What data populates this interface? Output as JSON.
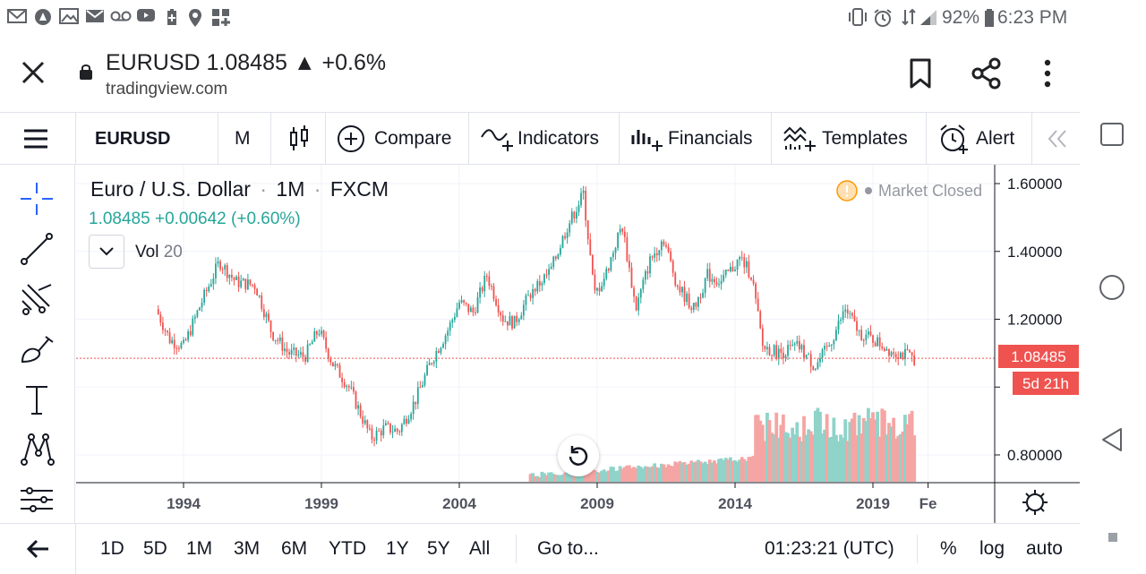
{
  "status_bar": {
    "left_icons": [
      "gmail-icon",
      "maps-feed-icon",
      "photos-icon",
      "mail-icon",
      "voicemail-icon",
      "youtube-icon",
      "battery-saver-icon",
      "location-icon",
      "apps-grid-icon"
    ],
    "right_icons": [
      "vibrate-icon",
      "alarm-icon",
      "data-signal-icon",
      "cell-signal-icon"
    ],
    "battery": "92%",
    "time": "6:23 PM"
  },
  "browser": {
    "page_title": "EURUSD 1.08485 ▲ +0.6%",
    "url": "tradingview.com"
  },
  "toolbar": {
    "symbol": "EURUSD",
    "interval": "M",
    "compare": "Compare",
    "indicators": "Indicators",
    "financials": "Financials",
    "templates": "Templates",
    "alert": "Alert"
  },
  "left_tools": [
    "crosshair-icon",
    "trend-line-icon",
    "pitchfork-icon",
    "brush-icon",
    "text-icon",
    "pattern-icon",
    "measure-icon",
    "back-arrow-icon"
  ],
  "legend": {
    "symbol_name": "Euro / U.S. Dollar",
    "interval": "1M",
    "exchange": "FXCM",
    "price": "1.08485",
    "change": "+0.00642",
    "change_pct": "(+0.60%)",
    "vol_label": "Vol",
    "vol_length": "20"
  },
  "market_status": "Market Closed",
  "price_axis": {
    "ticks": [
      "1.60000",
      "1.40000",
      "1.20000",
      "0.80000"
    ],
    "current_price": "1.08485",
    "countdown": "5d 21h"
  },
  "time_axis": {
    "ticks": [
      "1994",
      "1999",
      "2004",
      "2009",
      "2014",
      "2019",
      "Fe"
    ]
  },
  "bottom_bar": {
    "ranges": [
      "1D",
      "5D",
      "1M",
      "3M",
      "6M",
      "YTD",
      "1Y",
      "5Y",
      "All"
    ],
    "goto": "Go to...",
    "clock": "01:23:21 (UTC)",
    "percent": "%",
    "log": "log",
    "auto": "auto"
  },
  "colors": {
    "up": "#26a69a",
    "down": "#ef5350",
    "up_volume": "#8fd3c9",
    "down_volume": "#f5a5a3",
    "price_label": "#ef5350"
  },
  "chart_data": {
    "type": "candlestick",
    "interval": "1M",
    "ylim": [
      0.75,
      1.65
    ],
    "year_range": [
      1993,
      2020.8
    ],
    "anchors": [
      {
        "year": 1993.0,
        "price": 1.23
      },
      {
        "year": 1993.5,
        "price": 1.14
      },
      {
        "year": 1994.0,
        "price": 1.12
      },
      {
        "year": 1994.6,
        "price": 1.24
      },
      {
        "year": 1995.3,
        "price": 1.37
      },
      {
        "year": 1995.9,
        "price": 1.31
      },
      {
        "year": 1996.6,
        "price": 1.3
      },
      {
        "year": 1997.2,
        "price": 1.16
      },
      {
        "year": 1997.8,
        "price": 1.1
      },
      {
        "year": 1998.4,
        "price": 1.09
      },
      {
        "year": 1998.9,
        "price": 1.17
      },
      {
        "year": 1999.4,
        "price": 1.07
      },
      {
        "year": 2000.0,
        "price": 1.0
      },
      {
        "year": 2000.8,
        "price": 0.85
      },
      {
        "year": 2001.3,
        "price": 0.88
      },
      {
        "year": 2001.8,
        "price": 0.87
      },
      {
        "year": 2002.4,
        "price": 0.96
      },
      {
        "year": 2003.0,
        "price": 1.08
      },
      {
        "year": 2003.6,
        "price": 1.17
      },
      {
        "year": 2004.0,
        "price": 1.25
      },
      {
        "year": 2004.5,
        "price": 1.22
      },
      {
        "year": 2005.0,
        "price": 1.33
      },
      {
        "year": 2005.6,
        "price": 1.2
      },
      {
        "year": 2006.0,
        "price": 1.19
      },
      {
        "year": 2006.6,
        "price": 1.28
      },
      {
        "year": 2007.3,
        "price": 1.34
      },
      {
        "year": 2007.9,
        "price": 1.47
      },
      {
        "year": 2008.5,
        "price": 1.57
      },
      {
        "year": 2008.9,
        "price": 1.27
      },
      {
        "year": 2009.3,
        "price": 1.33
      },
      {
        "year": 2009.9,
        "price": 1.48
      },
      {
        "year": 2010.4,
        "price": 1.23
      },
      {
        "year": 2010.9,
        "price": 1.37
      },
      {
        "year": 2011.4,
        "price": 1.44
      },
      {
        "year": 2011.9,
        "price": 1.3
      },
      {
        "year": 2012.5,
        "price": 1.23
      },
      {
        "year": 2013.0,
        "price": 1.33
      },
      {
        "year": 2013.5,
        "price": 1.31
      },
      {
        "year": 2014.2,
        "price": 1.38
      },
      {
        "year": 2014.6,
        "price": 1.33
      },
      {
        "year": 2015.0,
        "price": 1.12
      },
      {
        "year": 2015.6,
        "price": 1.1
      },
      {
        "year": 2016.3,
        "price": 1.12
      },
      {
        "year": 2016.9,
        "price": 1.06
      },
      {
        "year": 2017.4,
        "price": 1.12
      },
      {
        "year": 2018.0,
        "price": 1.23
      },
      {
        "year": 2018.5,
        "price": 1.16
      },
      {
        "year": 2019.0,
        "price": 1.14
      },
      {
        "year": 2019.6,
        "price": 1.11
      },
      {
        "year": 2020.5,
        "price": 1.0848
      }
    ],
    "volume": {
      "start_year": 2006.5,
      "high_start_year": 2014.7,
      "series_name": "Vol 20"
    }
  }
}
